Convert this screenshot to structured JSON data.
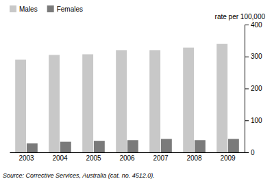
{
  "chart_data": {
    "type": "bar",
    "ylabel": "rate per 100,000",
    "source": "Source: Corrective Services, Australia (cat. no. 4512.0).",
    "categories": [
      "2003",
      "2004",
      "2005",
      "2006",
      "2007",
      "2008",
      "2009"
    ],
    "series": [
      {
        "name": "Males",
        "color": "#c8c8c8",
        "values": [
          290,
          305,
          307,
          320,
          320,
          328,
          340
        ]
      },
      {
        "name": "Females",
        "color": "#7a7a7a",
        "values": [
          28,
          33,
          36,
          38,
          42,
          38,
          42
        ]
      }
    ],
    "ylim": [
      0,
      400
    ],
    "yticks": [
      0,
      100,
      200,
      300,
      400
    ],
    "grid": false,
    "legend": "upper left"
  }
}
